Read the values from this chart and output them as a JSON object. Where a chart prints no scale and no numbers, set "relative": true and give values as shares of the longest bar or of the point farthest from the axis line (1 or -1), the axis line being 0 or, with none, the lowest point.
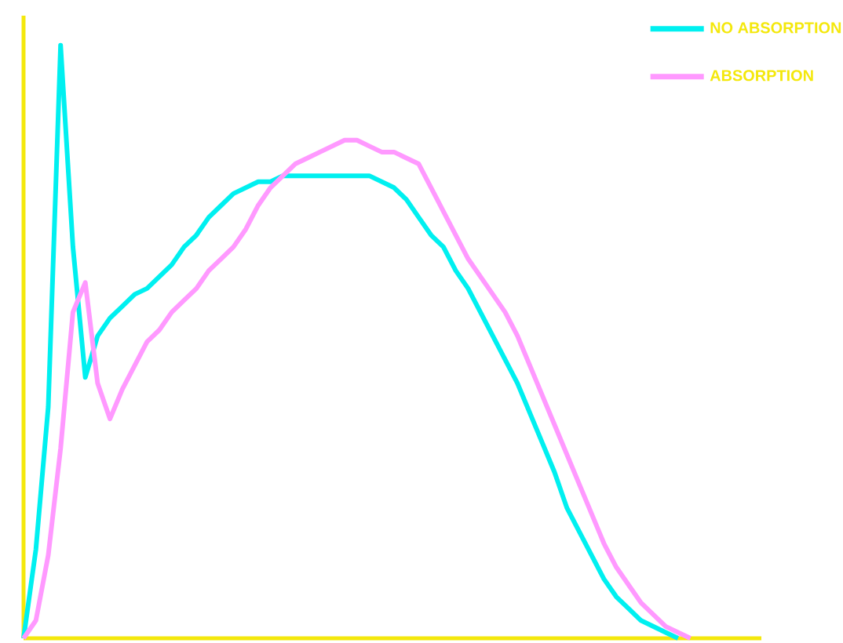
{
  "chart_data": {
    "type": "line",
    "relative": true,
    "legend": "top right",
    "categories": [
      null,
      null,
      null,
      null,
      null,
      null,
      null,
      null,
      null,
      null,
      null,
      null,
      null,
      null,
      null,
      null,
      null,
      null,
      null,
      null,
      null,
      null,
      null,
      null,
      null,
      null,
      null,
      null,
      null,
      null,
      null,
      null,
      null,
      null,
      null,
      null,
      null,
      null,
      null,
      null,
      null,
      null,
      null,
      null,
      null,
      null,
      null,
      null,
      null,
      null,
      null,
      null,
      null,
      null,
      null,
      null,
      null,
      null,
      null,
      null
    ],
    "series": [
      {
        "name": "NO ABSORPTION",
        "color": "#00f0f0",
        "values": [
          0,
          0.15,
          0.39,
          1.0,
          0.66,
          0.44,
          0.51,
          0.54,
          0.56,
          0.58,
          0.59,
          0.61,
          0.63,
          0.66,
          0.68,
          0.71,
          0.73,
          0.75,
          0.76,
          0.77,
          0.77,
          0.78,
          0.78,
          0.78,
          0.78,
          0.78,
          0.78,
          0.78,
          0.78,
          0.77,
          0.76,
          0.74,
          0.71,
          0.68,
          0.66,
          0.62,
          0.59,
          0.55,
          0.51,
          0.47,
          0.43,
          0.38,
          0.33,
          0.28,
          0.22,
          0.18,
          0.14,
          0.1,
          0.07,
          0.05,
          0.03,
          0.02,
          0.01,
          0,
          null,
          null,
          null,
          null,
          null,
          null
        ]
      },
      {
        "name": "ABSORPTION",
        "color": "#ff99ff",
        "values": [
          0,
          0.03,
          0.14,
          0.32,
          0.55,
          0.6,
          0.43,
          0.37,
          0.42,
          0.46,
          0.5,
          0.52,
          0.55,
          0.57,
          0.59,
          0.62,
          0.64,
          0.66,
          0.69,
          0.73,
          0.76,
          0.78,
          0.8,
          0.81,
          0.82,
          0.83,
          0.84,
          0.84,
          0.83,
          0.82,
          0.82,
          0.81,
          0.8,
          0.76,
          0.72,
          0.68,
          0.64,
          0.61,
          0.58,
          0.55,
          0.51,
          0.46,
          0.41,
          0.36,
          0.31,
          0.26,
          0.21,
          0.16,
          0.12,
          0.09,
          0.06,
          0.04,
          0.02,
          0.01,
          0,
          null,
          null,
          null,
          null,
          null
        ]
      }
    ]
  }
}
